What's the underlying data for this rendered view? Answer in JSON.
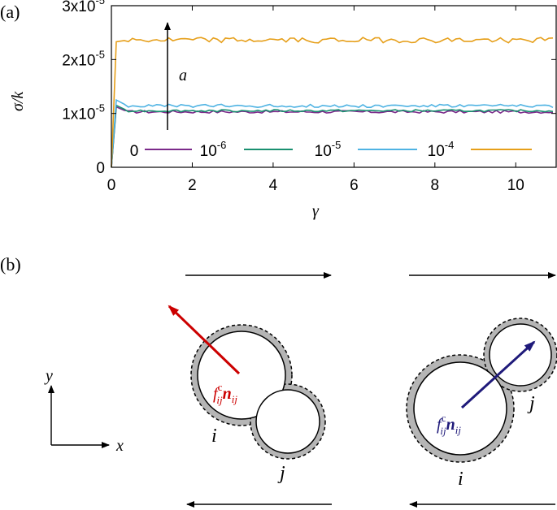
{
  "panel_a": {
    "label": "(a)",
    "ylabel": "σ/k",
    "xlabel": "γ",
    "arrow_label": "a"
  },
  "panel_b": {
    "label": "(b)",
    "axis_x": "x",
    "axis_y": "y",
    "left": {
      "force_label": "f",
      "force_sup": "c",
      "force_sub": "ij",
      "normal_label": "n",
      "normal_sub": "ij",
      "particle_i": "i",
      "particle_j": "j"
    },
    "right": {
      "force_label": "f",
      "force_sup": "c",
      "force_sub": "ij",
      "normal_label": "n",
      "normal_sub": "ij",
      "particle_i": "i",
      "particle_j": "j"
    },
    "colors": {
      "left_force": "#cc0000",
      "right_force": "#1f1a7a",
      "shell": "#b5b5b5"
    }
  },
  "chart_data": {
    "type": "line",
    "xlim": [
      0,
      11
    ],
    "ylim": [
      0,
      3e-05
    ],
    "grid": false,
    "legend_position": "bottom",
    "x_ticks": [
      {
        "value": 0,
        "label": "0"
      },
      {
        "value": 2,
        "label": "2"
      },
      {
        "value": 4,
        "label": "4"
      },
      {
        "value": 6,
        "label": "6"
      },
      {
        "value": 8,
        "label": "8"
      },
      {
        "value": 10,
        "label": "10"
      }
    ],
    "y_ticks": [
      {
        "value": 0,
        "mant": "0",
        "exp": ""
      },
      {
        "value": 1e-05,
        "mant": "1x10",
        "exp": "-5"
      },
      {
        "value": 2e-05,
        "mant": "2x10",
        "exp": "-5"
      },
      {
        "value": 3e-05,
        "mant": "3x10",
        "exp": "-5"
      }
    ],
    "series": [
      {
        "name": "0",
        "name_exp": "",
        "color": "#7b2a8a",
        "plateau": 1.03e-05,
        "peak": 1.12e-05,
        "noise": 2.5e-07
      },
      {
        "name": "10",
        "name_exp": "-6",
        "color": "#1a9070",
        "plateau": 1.05e-05,
        "peak": 1.15e-05,
        "noise": 2e-07
      },
      {
        "name": "10",
        "name_exp": "-5",
        "color": "#4fb3e3",
        "plateau": 1.14e-05,
        "peak": 1.25e-05,
        "noise": 3e-07
      },
      {
        "name": "10",
        "name_exp": "-4",
        "color": "#e69f1a",
        "plateau": 2.36e-05,
        "peak": 2.33e-05,
        "noise": 5e-07
      }
    ]
  }
}
